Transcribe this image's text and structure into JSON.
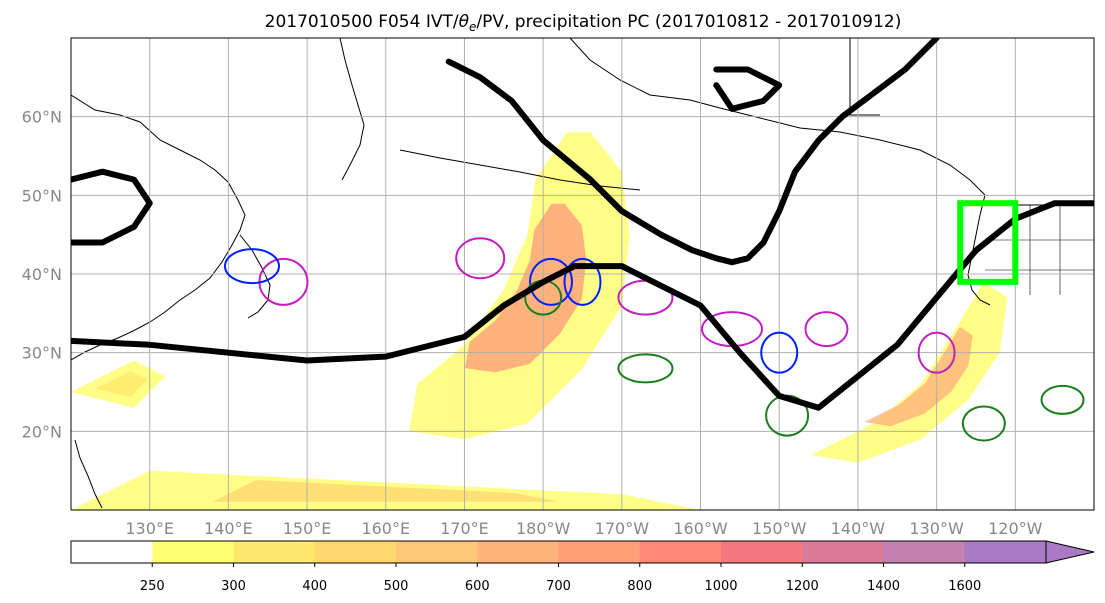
{
  "title_parts": {
    "prefix": "2017010500 F054 IVT/",
    "theta": "θ",
    "theta_sub": "e",
    "suffix": "/PV, precipitation PC (2017010812 - 2017010912)"
  },
  "chart_data": {
    "type": "map",
    "title": "2017010500 F054 IVT/θe/PV, precipitation PC (2017010812 - 2017010912)",
    "projection": "equirectangular",
    "xlim": [
      120,
      250
    ],
    "ylim": [
      10,
      70
    ],
    "x_ticks": [
      {
        "lon": 130,
        "label": "130°E"
      },
      {
        "lon": 140,
        "label": "140°E"
      },
      {
        "lon": 150,
        "label": "150°E"
      },
      {
        "lon": 160,
        "label": "160°E"
      },
      {
        "lon": 170,
        "label": "170°E"
      },
      {
        "lon": 180,
        "label": "180°W"
      },
      {
        "lon": 190,
        "label": "170°W"
      },
      {
        "lon": 200,
        "label": "160°W"
      },
      {
        "lon": 210,
        "label": "150°W"
      },
      {
        "lon": 220,
        "label": "140°W"
      },
      {
        "lon": 230,
        "label": "130°W"
      },
      {
        "lon": 240,
        "label": "120°W"
      }
    ],
    "y_ticks": [
      {
        "lat": 20,
        "label": "20°N"
      },
      {
        "lat": 30,
        "label": "30°N"
      },
      {
        "lat": 40,
        "label": "40°N"
      },
      {
        "lat": 50,
        "label": "50°N"
      },
      {
        "lat": 60,
        "label": "60°N"
      }
    ],
    "grid": true,
    "colorbar": {
      "orientation": "horizontal",
      "extend": "max",
      "levels": [
        250,
        300,
        400,
        500,
        600,
        700,
        800,
        1000,
        1200,
        1400,
        1600
      ],
      "labels": [
        "250",
        "300",
        "400",
        "500",
        "600",
        "700",
        "800",
        "1000",
        "1200",
        "1400",
        "1600"
      ],
      "colors": [
        "#ffffff",
        "#ffff73",
        "#ffe86a",
        "#ffd86e",
        "#ffc878",
        "#ffb47a",
        "#ff9f78",
        "#ff8878",
        "#f2787e",
        "#d97b98",
        "#c481b0",
        "#a97ac4"
      ]
    },
    "ivt_regions": [
      {
        "name": "central-pacific-river",
        "level": 700,
        "polygon": [
          [
            164,
            26
          ],
          [
            170,
            31
          ],
          [
            175,
            38
          ],
          [
            178,
            45
          ],
          [
            179,
            52
          ],
          [
            183,
            58
          ],
          [
            186,
            58
          ],
          [
            190,
            53
          ],
          [
            191,
            45
          ],
          [
            190,
            36
          ],
          [
            185,
            28
          ],
          [
            178,
            21
          ],
          [
            170,
            19
          ],
          [
            163,
            20
          ]
        ]
      },
      {
        "name": "east-pacific-river",
        "level": 600,
        "polygon": [
          [
            214,
            17
          ],
          [
            222,
            21
          ],
          [
            228,
            26
          ],
          [
            233,
            34
          ],
          [
            236,
            39
          ],
          [
            239,
            37
          ],
          [
            238,
            30
          ],
          [
            234,
            24
          ],
          [
            228,
            19
          ],
          [
            220,
            16
          ]
        ]
      },
      {
        "name": "subtropical-band",
        "level": 400,
        "polygon": [
          [
            120,
            10
          ],
          [
            130,
            15
          ],
          [
            150,
            14
          ],
          [
            170,
            13
          ],
          [
            190,
            12
          ],
          [
            200,
            10
          ]
        ]
      },
      {
        "name": "west-band",
        "level": 300,
        "polygon": [
          [
            120,
            25
          ],
          [
            128,
            29
          ],
          [
            132,
            27
          ],
          [
            128,
            23
          ]
        ]
      }
    ],
    "theta_e_contours": [
      {
        "name": "main-front",
        "lon": [
          120,
          130,
          140,
          150,
          160,
          170,
          175,
          180,
          184,
          190,
          200,
          205,
          210,
          215,
          220,
          225,
          230,
          235,
          240,
          245,
          250
        ],
        "lat": [
          31.5,
          31,
          30,
          29,
          29.5,
          32,
          36,
          39,
          41,
          41,
          36,
          30,
          24.5,
          23,
          27,
          31,
          37,
          43,
          47,
          49,
          49
        ]
      },
      {
        "name": "northern-loop",
        "lon": [
          168,
          172,
          176,
          180,
          186,
          190,
          195,
          199,
          202,
          204,
          206,
          208,
          210,
          212,
          215,
          218,
          222,
          226,
          230
        ],
        "lat": [
          67,
          65,
          62,
          57,
          52,
          48,
          45,
          43,
          42,
          41.5,
          42,
          44,
          48,
          53,
          57,
          60,
          63,
          66,
          70
        ]
      },
      {
        "name": "alaska-loop",
        "lon": [
          202,
          206,
          210,
          208,
          204,
          202
        ],
        "lat": [
          66,
          66,
          64,
          62,
          61,
          64
        ]
      },
      {
        "name": "siberia-loop",
        "lon": [
          120,
          124,
          128,
          130,
          128,
          124,
          120
        ],
        "lat": [
          52,
          53,
          52,
          49,
          46,
          44,
          44
        ]
      }
    ],
    "pv_contours": [
      {
        "color": "magenta",
        "centers": [
          [
            172,
            42
          ],
          [
            147,
            39
          ],
          [
            193,
            37
          ],
          [
            204,
            33
          ],
          [
            216,
            33
          ],
          [
            230,
            30
          ]
        ]
      },
      {
        "color": "blue",
        "centers": [
          [
            143,
            41
          ],
          [
            181,
            39
          ],
          [
            185,
            39
          ],
          [
            210,
            30
          ]
        ]
      },
      {
        "color": "green",
        "centers": [
          [
            180,
            37
          ],
          [
            193,
            28
          ],
          [
            211,
            22
          ],
          [
            236,
            21
          ],
          [
            246,
            24
          ]
        ]
      }
    ],
    "region_box": {
      "color": "#00ff00",
      "lon": [
        233,
        240
      ],
      "lat": [
        39,
        49
      ]
    }
  }
}
